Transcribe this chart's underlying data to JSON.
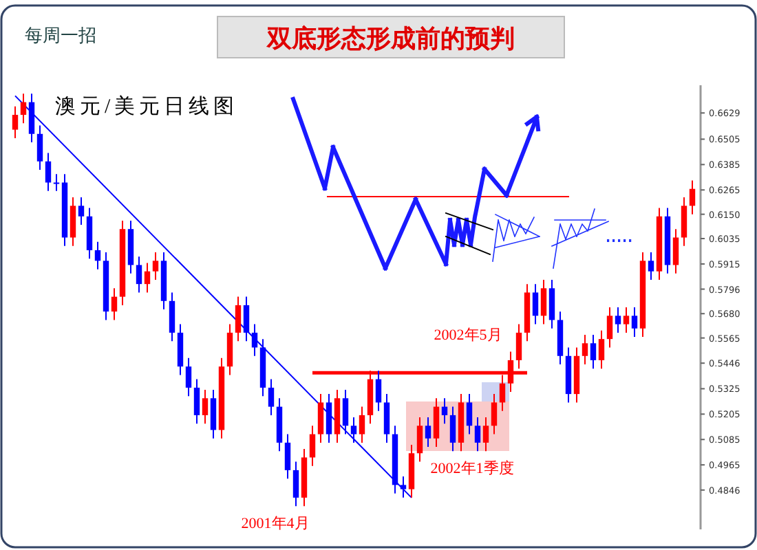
{
  "chart_data": {
    "type": "candlestick",
    "title": "双底形态形成前的预判",
    "subtitle": "每周一招",
    "annotations": [
      "澳元/美元日线图",
      "2001年4月",
      "2002年1季度",
      "2002年5月"
    ],
    "categories": [
      null,
      null,
      null,
      null,
      null,
      null,
      null,
      null,
      null,
      null,
      null,
      null,
      null,
      null,
      null,
      null,
      null,
      null,
      null,
      null,
      null,
      null,
      null,
      null,
      null,
      null,
      null,
      null,
      null,
      null,
      null,
      null,
      null,
      null,
      null,
      null,
      null,
      null,
      null,
      null,
      null,
      null,
      null,
      null,
      null,
      null,
      null,
      null,
      null,
      null,
      null,
      null,
      null,
      null,
      null,
      null,
      null,
      null,
      null,
      null,
      null,
      null,
      null,
      null,
      null,
      null,
      null,
      null,
      null,
      null,
      null,
      null,
      null,
      null,
      null,
      null,
      null,
      null,
      null,
      null,
      null,
      null,
      null
    ],
    "ohlc": [
      [
        0.655,
        0.666,
        0.651,
        0.662
      ],
      [
        0.662,
        0.672,
        0.658,
        0.668
      ],
      [
        0.668,
        0.672,
        0.649,
        0.653
      ],
      [
        0.653,
        0.657,
        0.636,
        0.64
      ],
      [
        0.64,
        0.644,
        0.626,
        0.63
      ],
      [
        0.63,
        0.634,
        0.626,
        0.63
      ],
      [
        0.63,
        0.634,
        0.6,
        0.604
      ],
      [
        0.604,
        0.623,
        0.6,
        0.619
      ],
      [
        0.619,
        0.623,
        0.61,
        0.614
      ],
      [
        0.614,
        0.618,
        0.594,
        0.598
      ],
      [
        0.598,
        0.602,
        0.589,
        0.593
      ],
      [
        0.593,
        0.597,
        0.565,
        0.569
      ],
      [
        0.569,
        0.58,
        0.565,
        0.576
      ],
      [
        0.576,
        0.612,
        0.572,
        0.608
      ],
      [
        0.608,
        0.612,
        0.587,
        0.591
      ],
      [
        0.591,
        0.595,
        0.578,
        0.582
      ],
      [
        0.582,
        0.592,
        0.578,
        0.588
      ],
      [
        0.588,
        0.597,
        0.584,
        0.593
      ],
      [
        0.593,
        0.597,
        0.57,
        0.574
      ],
      [
        0.574,
        0.578,
        0.555,
        0.559
      ],
      [
        0.559,
        0.563,
        0.539,
        0.543
      ],
      [
        0.543,
        0.547,
        0.529,
        0.533
      ],
      [
        0.533,
        0.537,
        0.516,
        0.52
      ],
      [
        0.52,
        0.532,
        0.516,
        0.528
      ],
      [
        0.528,
        0.532,
        0.509,
        0.513
      ],
      [
        0.513,
        0.547,
        0.509,
        0.543
      ],
      [
        0.543,
        0.563,
        0.539,
        0.559
      ],
      [
        0.559,
        0.576,
        0.555,
        0.572
      ],
      [
        0.572,
        0.576,
        0.555,
        0.559
      ],
      [
        0.559,
        0.563,
        0.548,
        0.552
      ],
      [
        0.552,
        0.556,
        0.529,
        0.533
      ],
      [
        0.533,
        0.537,
        0.52,
        0.524
      ],
      [
        0.524,
        0.528,
        0.503,
        0.507
      ],
      [
        0.507,
        0.511,
        0.49,
        0.494
      ],
      [
        0.494,
        0.498,
        0.477,
        0.481
      ],
      [
        0.481,
        0.504,
        0.477,
        0.5
      ],
      [
        0.5,
        0.515,
        0.496,
        0.511
      ],
      [
        0.511,
        0.53,
        0.507,
        0.526
      ],
      [
        0.526,
        0.53,
        0.507,
        0.511
      ],
      [
        0.511,
        0.532,
        0.507,
        0.528
      ],
      [
        0.528,
        0.532,
        0.511,
        0.515
      ],
      [
        0.515,
        0.519,
        0.507,
        0.511
      ],
      [
        0.511,
        0.524,
        0.507,
        0.52
      ],
      [
        0.52,
        0.541,
        0.516,
        0.537
      ],
      [
        0.537,
        0.541,
        0.522,
        0.526
      ],
      [
        0.526,
        0.53,
        0.507,
        0.511
      ],
      [
        0.511,
        0.515,
        0.483,
        0.487
      ],
      [
        0.487,
        0.491,
        0.481,
        0.485
      ],
      [
        0.485,
        0.506,
        0.481,
        0.502
      ],
      [
        0.502,
        0.519,
        0.498,
        0.515
      ],
      [
        0.515,
        0.519,
        0.505,
        0.509
      ],
      [
        0.509,
        0.528,
        0.505,
        0.524
      ],
      [
        0.524,
        0.528,
        0.516,
        0.52
      ],
      [
        0.52,
        0.524,
        0.503,
        0.507
      ],
      [
        0.507,
        0.53,
        0.503,
        0.526
      ],
      [
        0.526,
        0.53,
        0.511,
        0.515
      ],
      [
        0.515,
        0.519,
        0.503,
        0.507
      ],
      [
        0.507,
        0.519,
        0.503,
        0.515
      ],
      [
        0.515,
        0.53,
        0.511,
        0.526
      ],
      [
        0.526,
        0.539,
        0.522,
        0.535
      ],
      [
        0.535,
        0.55,
        0.531,
        0.546
      ],
      [
        0.546,
        0.563,
        0.542,
        0.559
      ],
      [
        0.559,
        0.582,
        0.555,
        0.578
      ],
      [
        0.578,
        0.582,
        0.563,
        0.567
      ],
      [
        0.567,
        0.584,
        0.563,
        0.58
      ],
      [
        0.58,
        0.584,
        0.561,
        0.565
      ],
      [
        0.565,
        0.569,
        0.544,
        0.548
      ],
      [
        0.548,
        0.552,
        0.526,
        0.53
      ],
      [
        0.53,
        0.552,
        0.526,
        0.548
      ],
      [
        0.548,
        0.558,
        0.544,
        0.554
      ],
      [
        0.554,
        0.558,
        0.542,
        0.546
      ],
      [
        0.546,
        0.56,
        0.542,
        0.556
      ],
      [
        0.556,
        0.571,
        0.552,
        0.567
      ],
      [
        0.567,
        0.571,
        0.559,
        0.563
      ],
      [
        0.563,
        0.571,
        0.559,
        0.567
      ],
      [
        0.567,
        0.571,
        0.557,
        0.561
      ],
      [
        0.561,
        0.597,
        0.557,
        0.593
      ],
      [
        0.593,
        0.597,
        0.584,
        0.588
      ],
      [
        0.588,
        0.618,
        0.584,
        0.614
      ],
      [
        0.614,
        0.618,
        0.587,
        0.591
      ],
      [
        0.591,
        0.608,
        0.587,
        0.604
      ],
      [
        0.604,
        0.623,
        0.6,
        0.619
      ],
      [
        0.619,
        0.631,
        0.615,
        0.627
      ]
    ],
    "colors": [
      "#ff0000",
      "#ff0000",
      "#0000ff",
      "#0000ff",
      "#0000ff",
      "#0000ff",
      "#0000ff",
      "#ff0000",
      "#0000ff",
      "#0000ff",
      "#0000ff",
      "#0000ff",
      "#ff0000",
      "#ff0000",
      "#0000ff",
      "#0000ff",
      "#ff0000",
      "#ff0000",
      "#0000ff",
      "#0000ff",
      "#0000ff",
      "#0000ff",
      "#0000ff",
      "#ff0000",
      "#0000ff",
      "#ff0000",
      "#ff0000",
      "#ff0000",
      "#0000ff",
      "#0000ff",
      "#0000ff",
      "#0000ff",
      "#0000ff",
      "#0000ff",
      "#0000ff",
      "#ff0000",
      "#ff0000",
      "#ff0000",
      "#0000ff",
      "#ff0000",
      "#0000ff",
      "#0000ff",
      "#ff0000",
      "#ff0000",
      "#0000ff",
      "#0000ff",
      "#0000ff",
      "#0000ff",
      "#ff0000",
      "#ff0000",
      "#0000ff",
      "#ff0000",
      "#0000ff",
      "#0000ff",
      "#ff0000",
      "#0000ff",
      "#0000ff",
      "#ff0000",
      "#ff0000",
      "#ff0000",
      "#ff0000",
      "#ff0000",
      "#ff0000",
      "#0000ff",
      "#ff0000",
      "#0000ff",
      "#0000ff",
      "#0000ff",
      "#ff0000",
      "#ff0000",
      "#0000ff",
      "#ff0000",
      "#ff0000",
      "#0000ff",
      "#ff0000",
      "#0000ff",
      "#ff0000",
      "#0000ff",
      "#ff0000",
      "#0000ff",
      "#ff0000",
      "#ff0000",
      "#ff0000"
    ],
    "series": [
      {
        "type": "line",
        "color": "#0000ff",
        "values": [
          0.671,
          null,
          null,
          null,
          null,
          null,
          null,
          null,
          null,
          null,
          null,
          null,
          null,
          null,
          null,
          null,
          null,
          null,
          null,
          null,
          null,
          null,
          null,
          null,
          null,
          null,
          null,
          null,
          null,
          null,
          null,
          null,
          null,
          null,
          null,
          null,
          null,
          null,
          null,
          null,
          null,
          null,
          null,
          null,
          null,
          null,
          null,
          null,
          0.481,
          null,
          null,
          null,
          null,
          null,
          null,
          null,
          null,
          null,
          null,
          null,
          null,
          null,
          null,
          null,
          null,
          null,
          null,
          null,
          null,
          null,
          null,
          null,
          null,
          null,
          null,
          null,
          null,
          null,
          null,
          null,
          null,
          null,
          null
        ]
      },
      {
        "type": "line",
        "color": "#ff0000",
        "values": [
          null,
          null,
          null,
          null,
          null,
          null,
          null,
          null,
          null,
          null,
          null,
          null,
          null,
          null,
          null,
          null,
          null,
          null,
          null,
          null,
          null,
          null,
          null,
          null,
          null,
          null,
          null,
          null,
          null,
          null,
          null,
          null,
          null,
          null,
          null,
          null,
          0.54,
          null,
          null,
          null,
          null,
          null,
          null,
          null,
          null,
          null,
          null,
          null,
          null,
          null,
          null,
          null,
          null,
          null,
          null,
          null,
          null,
          null,
          null,
          null,
          null,
          null,
          0.54,
          null,
          null,
          null,
          null,
          null,
          null,
          null,
          null,
          null,
          null,
          null,
          null,
          null,
          null,
          null,
          null,
          null,
          null,
          null,
          null
        ]
      }
    ],
    "ylim": [
      0.466,
      0.676
    ],
    "yticks": [
      0.4846,
      0.4965,
      0.5085,
      0.5205,
      0.5325,
      0.5446,
      0.5565,
      {
        "value": 0.568,
        "label": "0.5680"
      },
      0.5796,
      0.5915,
      0.6035,
      {
        "value": 0.615,
        "label": "0.6150"
      },
      0.6265,
      0.6385,
      0.6505,
      0.6629
    ],
    "tick_labels": "y"
  }
}
